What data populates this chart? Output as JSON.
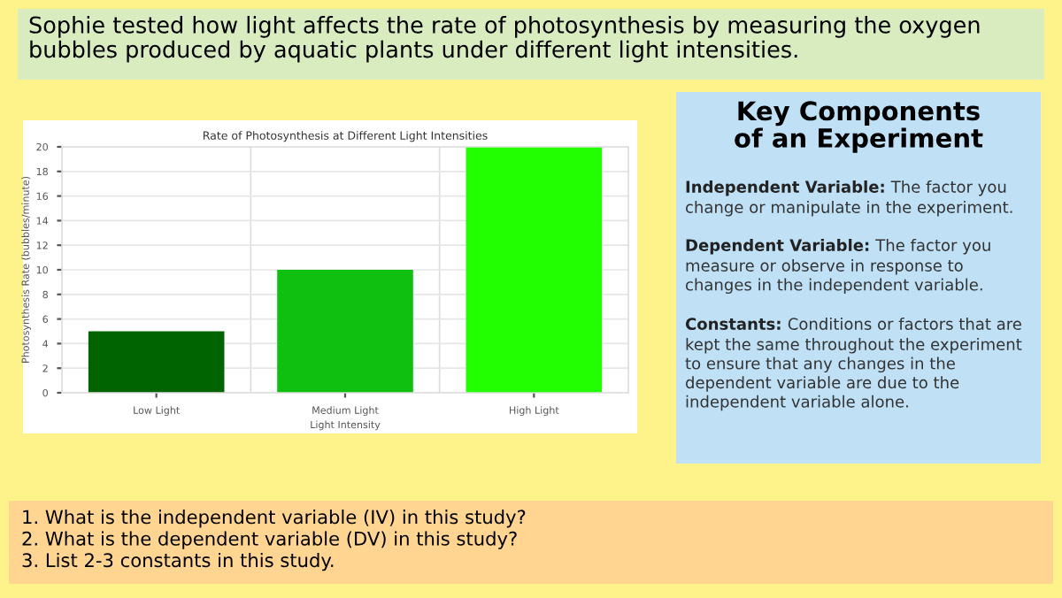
{
  "chart_data": [
    {
      "type": "bar",
      "title": "Rate of Photosynthesis at Different Light Intensities",
      "xlabel": "Light Intensity",
      "ylabel": "Photosynthesis Rate (bubbles/minute)",
      "categories": [
        "Low Light",
        "Medium Light",
        "High Light"
      ],
      "values": [
        5,
        10,
        20
      ],
      "colors": [
        "#006400",
        "#10c010",
        "#22ff00"
      ],
      "ylim": [
        0,
        20
      ],
      "yticks": [
        0,
        2,
        4,
        6,
        8,
        10,
        12,
        14,
        16,
        18,
        20
      ],
      "grid": true,
      "annotations": [
        "Sophie tested how light affects the rate of photosynthesis by measuring the oxygen\nbubbles produced by aquatic plants under different light intensities.",
        "1. What is the independent variable (IV) in this study?\n2. What is the dependent variable (DV) in this study?\n3. List 2-3 constants in this study."
      ]
    },
    {
      "type": "other",
      "title": "Key Components\nof an Experiment",
      "annotations": [
        "Independent Variable: The factor you\nchange or manipulate in the experiment.",
        "Dependent Variable: The factor you\nmeasure or observe in response to\nchanges in the independent variable.",
        "Constants: Conditions or factors that are\nkept the same throughout the experiment\nto ensure that any changes in the\ndependent variable are due to the\nindependent variable alone."
      ]
    }
  ]
}
